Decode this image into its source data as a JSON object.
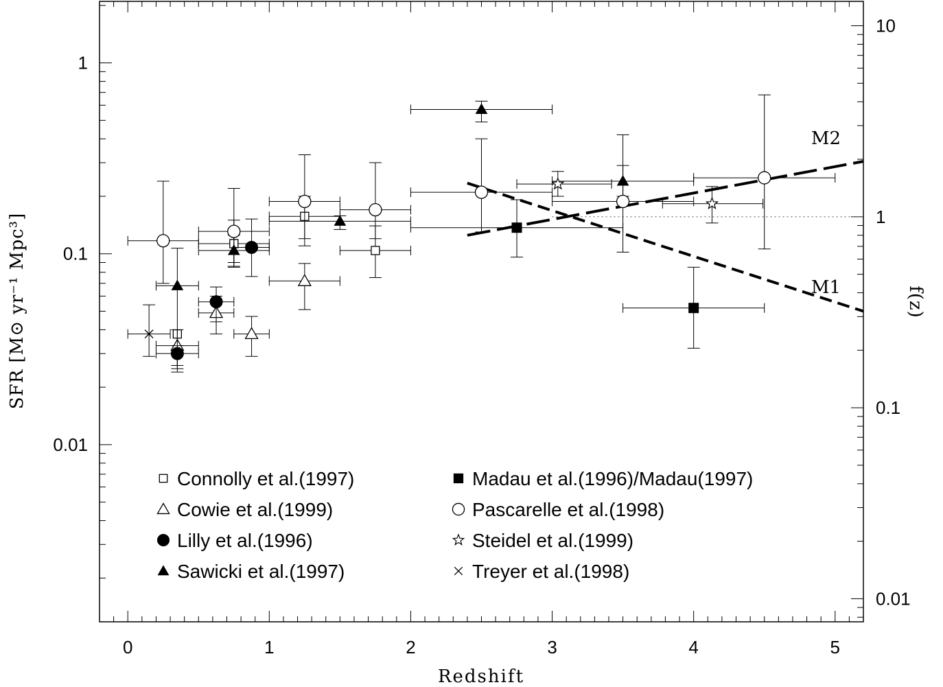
{
  "chart_data": {
    "type": "scatter",
    "xlabel": "Redshift",
    "ylabel": "SFR [M⊙ yr⁻¹ Mpc³]",
    "y2label": "f(z)",
    "xlim": [
      -0.2,
      5.2
    ],
    "ylim": [
      0.00118,
      2.1
    ],
    "y2lim": [
      0.00757,
      13.42
    ],
    "yscale": "log",
    "y2scale": "log",
    "grid": false,
    "legend_position": "bottom",
    "x_ticks": [
      "0",
      "1",
      "2",
      "3",
      "4",
      "5"
    ],
    "y_ticks": [
      "0.01",
      "0.1",
      "1"
    ],
    "y2_ticks": [
      "0.01",
      "0.1",
      "1",
      "10"
    ],
    "series": [
      {
        "name": "Connolly et al.(1997)",
        "marker": "square-open",
        "points": [
          {
            "x": 0.75,
            "y": 0.113,
            "xerr": [
              0.25,
              0.25
            ],
            "yerr": [
              0.086,
              0.15
            ]
          },
          {
            "x": 1.25,
            "y": 0.157,
            "xerr": [
              0.25,
              0.25
            ],
            "yerr": [
              0.12,
              0.2
            ]
          },
          {
            "x": 1.75,
            "y": 0.104,
            "xerr": [
              0.25,
              0.25
            ],
            "yerr": [
              0.075,
              0.14
            ]
          },
          {
            "x": 0.35,
            "y": 0.038,
            "xerr": [
              0.0,
              0.0
            ],
            "yerr": [
              0.0,
              0.0
            ]
          }
        ]
      },
      {
        "name": "Cowie et al.(1999)",
        "marker": "triangle-open",
        "points": [
          {
            "x": 0.35,
            "y": 0.033,
            "xerr": [
              0.15,
              0.15
            ],
            "yerr": [
              0.025,
              0.04
            ]
          },
          {
            "x": 0.625,
            "y": 0.049,
            "xerr": [
              0.125,
              0.125
            ],
            "yerr": [
              0.038,
              0.06
            ]
          },
          {
            "x": 0.875,
            "y": 0.038,
            "xerr": [
              0.125,
              0.125
            ],
            "yerr": [
              0.029,
              0.047
            ]
          },
          {
            "x": 1.25,
            "y": 0.072,
            "xerr": [
              0.25,
              0.25
            ],
            "yerr": [
              0.051,
              0.089
            ]
          }
        ]
      },
      {
        "name": "Lilly et al.(1996)",
        "marker": "circle-filled",
        "points": [
          {
            "x": 0.35,
            "y": 0.03,
            "xerr": [
              0.15,
              0.15
            ],
            "yerr": [
              0.024,
              0.033
            ]
          },
          {
            "x": 0.625,
            "y": 0.056,
            "xerr": [
              0.125,
              0.125
            ],
            "yerr": [
              0.044,
              0.067
            ]
          },
          {
            "x": 0.875,
            "y": 0.108,
            "xerr": [
              0.125,
              0.125
            ],
            "yerr": [
              0.076,
              0.152
            ]
          }
        ]
      },
      {
        "name": "Sawicki et al.(1997)",
        "marker": "triangle-filled",
        "points": [
          {
            "x": 0.35,
            "y": 0.068,
            "xerr": [
              0.15,
              0.15
            ],
            "yerr": [
              0.026,
              0.107
            ]
          },
          {
            "x": 0.75,
            "y": 0.104,
            "xerr": [
              0.25,
              0.25
            ],
            "yerr": [
              0.085,
              0.125
            ]
          },
          {
            "x": 1.5,
            "y": 0.148,
            "xerr": [
              0.5,
              0.5
            ],
            "yerr": [
              0.134,
              0.158
            ]
          },
          {
            "x": 2.5,
            "y": 0.57,
            "xerr": [
              0.5,
              0.5
            ],
            "yerr": [
              0.49,
              0.63
            ]
          },
          {
            "x": 3.5,
            "y": 0.24,
            "xerr": [
              0.5,
              0.5
            ],
            "yerr": [
              0.2,
              0.29
            ]
          }
        ]
      },
      {
        "name": "Madau et al.(1996)/Madau(1997)",
        "marker": "square-filled",
        "points": [
          {
            "x": 2.75,
            "y": 0.137,
            "xerr": [
              0.75,
              0.75
            ],
            "yerr": [
              0.096,
              0.192
            ]
          },
          {
            "x": 4.0,
            "y": 0.052,
            "xerr": [
              0.5,
              0.5
            ],
            "yerr": [
              0.032,
              0.085
            ]
          }
        ]
      },
      {
        "name": "Pascarelle et al.(1998)",
        "marker": "circle-open",
        "points": [
          {
            "x": 0.25,
            "y": 0.117,
            "xerr": [
              0.25,
              0.25
            ],
            "yerr": [
              0.07,
              0.24
            ]
          },
          {
            "x": 0.75,
            "y": 0.131,
            "xerr": [
              0.25,
              0.25
            ],
            "yerr": [
              0.09,
              0.22
            ]
          },
          {
            "x": 1.25,
            "y": 0.188,
            "xerr": [
              0.25,
              0.25
            ],
            "yerr": [
              0.11,
              0.33
            ]
          },
          {
            "x": 1.75,
            "y": 0.17,
            "xerr": [
              0.25,
              0.25
            ],
            "yerr": [
              0.12,
              0.3
            ]
          },
          {
            "x": 2.5,
            "y": 0.21,
            "xerr": [
              0.5,
              0.5
            ],
            "yerr": [
              0.13,
              0.4
            ]
          },
          {
            "x": 3.5,
            "y": 0.188,
            "xerr": [
              0.5,
              0.5
            ],
            "yerr": [
              0.102,
              0.42
            ]
          },
          {
            "x": 4.5,
            "y": 0.25,
            "xerr": [
              0.5,
              0.5
            ],
            "yerr": [
              0.106,
              0.68
            ]
          }
        ]
      },
      {
        "name": "Steidel et al.(1999)",
        "marker": "star-open",
        "points": [
          {
            "x": 3.04,
            "y": 0.232,
            "xerr": [
              0.29,
              0.38
            ],
            "yerr": [
              0.2,
              0.27
            ]
          },
          {
            "x": 4.13,
            "y": 0.183,
            "xerr": [
              0.35,
              0.36
            ],
            "yerr": [
              0.145,
              0.225
            ]
          }
        ]
      },
      {
        "name": "Treyer et al.(1998)",
        "marker": "cross",
        "points": [
          {
            "x": 0.15,
            "y": 0.038,
            "xerr": [
              0.15,
              0.15
            ],
            "yerr": [
              0.029,
              0.054
            ]
          }
        ]
      }
    ],
    "models": [
      {
        "name": "M1",
        "axis": "right",
        "x": [
          2.4,
          5.2
        ],
        "y": [
          1.5,
          0.32
        ]
      },
      {
        "name": "M2",
        "axis": "right",
        "x": [
          2.4,
          5.2
        ],
        "y": [
          0.8,
          1.95
        ]
      }
    ],
    "reference_line": {
      "axis": "right",
      "y": 1.0,
      "x": [
        3.0,
        5.2
      ],
      "style": "dotted"
    }
  }
}
